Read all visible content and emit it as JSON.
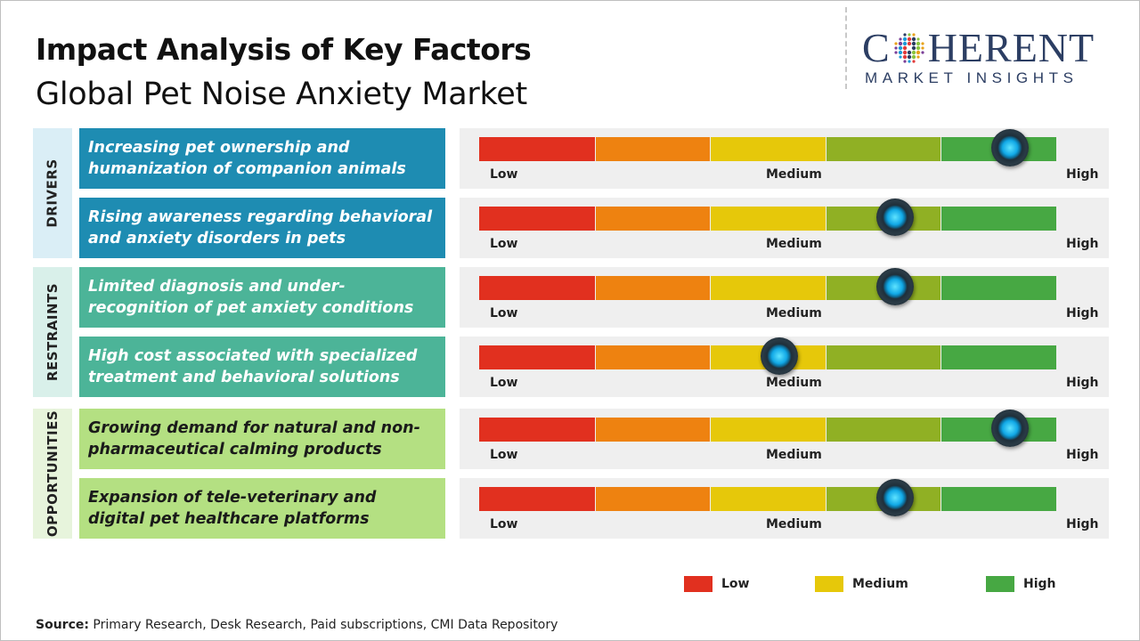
{
  "title": "Impact Analysis of Key Factors",
  "subtitle": "Global Pet Noise Anxiety Market",
  "logo": {
    "top_left": "C",
    "top_right": "HERENT",
    "bottom": "MARKET INSIGHTS"
  },
  "scale_labels": {
    "low": "Low",
    "medium": "Medium",
    "high": "High"
  },
  "colors": {
    "seg_red": "#e1301f",
    "seg_orange": "#ee8210",
    "seg_yellow": "#e6c80a",
    "seg_olive": "#90b024",
    "seg_green": "#47a843",
    "drivers_cat": "#daeef6",
    "drivers_factor": "#1e8cb2",
    "restraints_cat": "#d9f0ea",
    "restraints_factor": "#4cb498",
    "opportunities_cat": "#e7f4dc",
    "opportunities_factor": "#b4e082"
  },
  "chart_data": {
    "type": "table",
    "scale": [
      "Low",
      "Medium",
      "High"
    ],
    "categories": [
      {
        "name": "DRIVERS",
        "factors": [
          {
            "label": "Increasing pet ownership and humanization of companion animals",
            "impact": 0.92
          },
          {
            "label": "Rising awareness regarding behavioral and anxiety disorders in pets",
            "impact": 0.72
          }
        ]
      },
      {
        "name": "RESTRAINTS",
        "factors": [
          {
            "label": "Limited diagnosis and under-recognition of pet anxiety conditions",
            "impact": 0.72
          },
          {
            "label": "High cost associated with specialized treatment and behavioral solutions",
            "impact": 0.52
          }
        ]
      },
      {
        "name": "OPPORTUNITIES",
        "factors": [
          {
            "label": "Growing demand for natural and non-pharmaceutical calming products",
            "impact": 0.92
          },
          {
            "label": "Expansion of tele-veterinary and digital pet healthcare platforms",
            "impact": 0.72
          }
        ]
      }
    ],
    "legend": [
      {
        "label": "Low",
        "color": "#e1301f"
      },
      {
        "label": "Medium",
        "color": "#e6c80a"
      },
      {
        "label": "High",
        "color": "#47a843"
      }
    ]
  },
  "source": {
    "label": "Source:",
    "text": "Primary Research, Desk Research, Paid subscriptions, CMI Data Repository"
  }
}
